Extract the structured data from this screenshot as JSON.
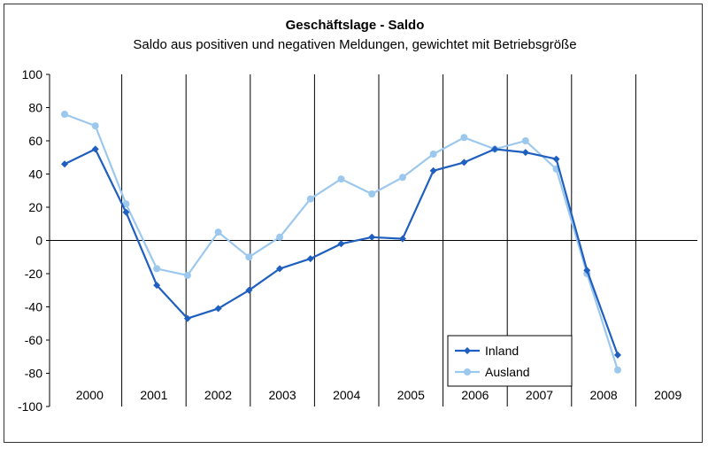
{
  "chart_data": {
    "type": "line",
    "title": "Geschäftslage - Saldo",
    "subtitle": "Saldo aus positiven und negativen Meldungen, gewichtet mit Betriebsgröße",
    "ylim": [
      -100,
      100
    ],
    "y_ticks": [
      100,
      80,
      60,
      40,
      20,
      0,
      -20,
      -40,
      -60,
      -80,
      -100
    ],
    "y_tick_labels": [
      "100",
      "80",
      "60",
      "40",
      "20",
      "0",
      "-20",
      "-40",
      "-60",
      "-80",
      "-100"
    ],
    "year_labels": [
      "2000",
      "2001",
      "2002",
      "2003",
      "2004",
      "2005",
      "2006",
      "2007",
      "2008",
      "2009"
    ],
    "grid": "vertical year separators",
    "legend_position": "bottom-right",
    "series": [
      {
        "name": "Inland",
        "color": "#1f5fbf",
        "marker": "diamond",
        "values": [
          46,
          55,
          17,
          -27,
          -47,
          -41,
          -30,
          -17,
          -11,
          -2,
          2,
          1,
          42,
          47,
          55,
          53,
          49,
          -18,
          -69
        ]
      },
      {
        "name": "Ausland",
        "color": "#9dc8ee",
        "marker": "circle",
        "values": [
          76,
          69,
          22,
          -17,
          -21,
          5,
          -10,
          2,
          25,
          37,
          28,
          38,
          52,
          62,
          55,
          60,
          43,
          -20,
          -78
        ]
      }
    ]
  }
}
